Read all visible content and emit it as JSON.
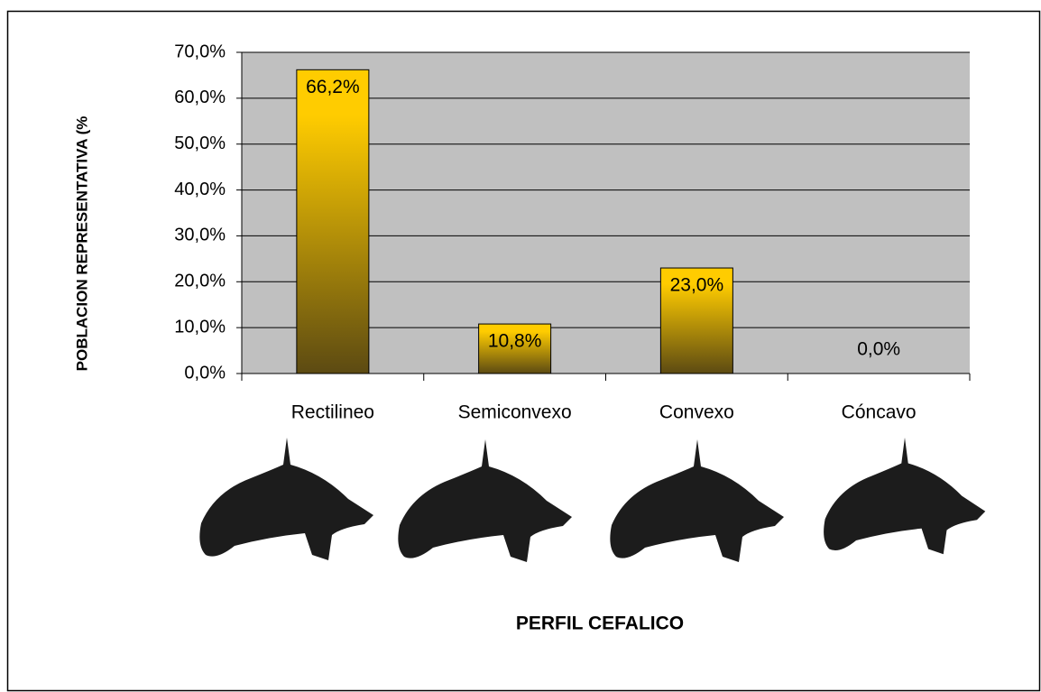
{
  "chart_data": {
    "type": "bar",
    "y_label": "POBLACION REPRESENTATIVA (%",
    "x_label": "PERFIL CEFALICO",
    "categories": [
      "Rectilineo",
      "Semiconvexo",
      "Convexo",
      "Cóncavo"
    ],
    "values": [
      66.2,
      10.8,
      23.0,
      0.0
    ],
    "value_labels": [
      "66,2%",
      "10,8%",
      "23,0%",
      "0,0%"
    ],
    "color": "#ffcc00",
    "ylim": [
      0,
      70
    ],
    "yticks": [
      {
        "value": 0,
        "label": "0,0%"
      },
      {
        "value": 10,
        "label": "10,0%"
      },
      {
        "value": 20,
        "label": "20,0%"
      },
      {
        "value": 30,
        "label": "30,0%"
      },
      {
        "value": 40,
        "label": "40,0%"
      },
      {
        "value": 50,
        "label": "50,0%"
      },
      {
        "value": 60,
        "label": "60,0%"
      },
      {
        "value": 70,
        "label": "70,0%"
      }
    ],
    "grid": true
  }
}
